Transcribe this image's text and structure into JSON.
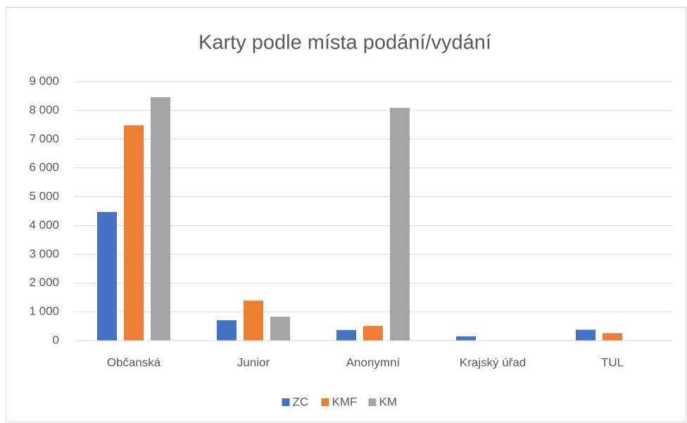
{
  "chart_data": {
    "type": "bar",
    "title": "Karty podle místa podání/vydání",
    "categories": [
      "Občanská",
      "Junior",
      "Anonymní",
      "Krajský úřad",
      "TUL"
    ],
    "series": [
      {
        "name": "ZC",
        "color": "#4472c4",
        "values": [
          4470,
          710,
          370,
          150,
          380
        ]
      },
      {
        "name": "KMF",
        "color": "#ed7d31",
        "values": [
          7480,
          1390,
          510,
          0,
          260
        ]
      },
      {
        "name": "KM",
        "color": "#a5a5a5",
        "values": [
          8460,
          830,
          8090,
          0,
          0
        ]
      }
    ],
    "ylim": [
      0,
      9000
    ],
    "yticks": [
      0,
      {
        "value": 1000,
        "label": "1 000"
      },
      {
        "value": 2000,
        "label": "2 000"
      },
      {
        "value": 3000,
        "label": "3 000"
      },
      {
        "value": 4000,
        "label": "4 000"
      },
      {
        "value": 5000,
        "label": "5 000"
      },
      {
        "value": 6000,
        "label": "6 000"
      },
      {
        "value": 7000,
        "label": "7 000"
      },
      {
        "value": 8000,
        "label": "8 000"
      },
      {
        "value": 9000,
        "label": "9 000"
      }
    ],
    "grid": true,
    "legend": "bottom"
  }
}
